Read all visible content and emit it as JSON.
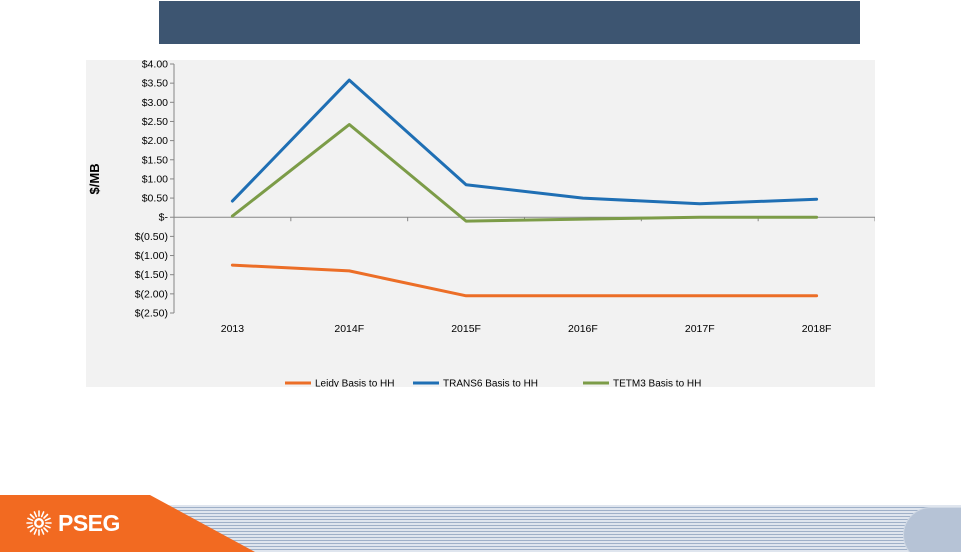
{
  "header": {
    "title": ""
  },
  "colors": {
    "header_bg": "#3d5571",
    "leidy": "#ec6e27",
    "trans6": "#1f6fb4",
    "tetm3": "#7c9c48",
    "brand_orange": "#f26a21"
  },
  "logo": {
    "text": "PSEG",
    "icon": "sunburst-icon"
  },
  "chart_data": {
    "type": "line",
    "categories": [
      "2013",
      "2014F",
      "2015F",
      "2016F",
      "2017F",
      "2018F"
    ],
    "ylabel": "$/MB",
    "xlabel": "",
    "ylim": [
      -2.5,
      4.0
    ],
    "yticks": [
      4.0,
      3.5,
      3.0,
      2.5,
      2.0,
      1.5,
      1.0,
      0.5,
      0,
      -0.5,
      -1.0,
      -1.5,
      -2.0,
      -2.5
    ],
    "ytick_labels": [
      "$4.00",
      "$3.50",
      "$3.00",
      "$2.50",
      "$2.00",
      "$1.50",
      "$1.00",
      "$0.50",
      "$-",
      "$(0.50)",
      "$(1.00)",
      "$(1.50)",
      "$(2.00)",
      "$(2.50)"
    ],
    "series": [
      {
        "name": "Leidy Basis to HH",
        "values": [
          -1.25,
          -1.4,
          -2.05,
          -2.05,
          -2.05,
          -2.05
        ]
      },
      {
        "name": "TRANS6 Basis to HH",
        "values": [
          0.42,
          3.58,
          0.85,
          0.5,
          0.35,
          0.47
        ]
      },
      {
        "name": "TETM3 Basis to HH",
        "values": [
          0.03,
          2.42,
          -0.1,
          -0.05,
          0.0,
          0.0
        ]
      }
    ],
    "legend_position": "bottom",
    "grid": false
  }
}
